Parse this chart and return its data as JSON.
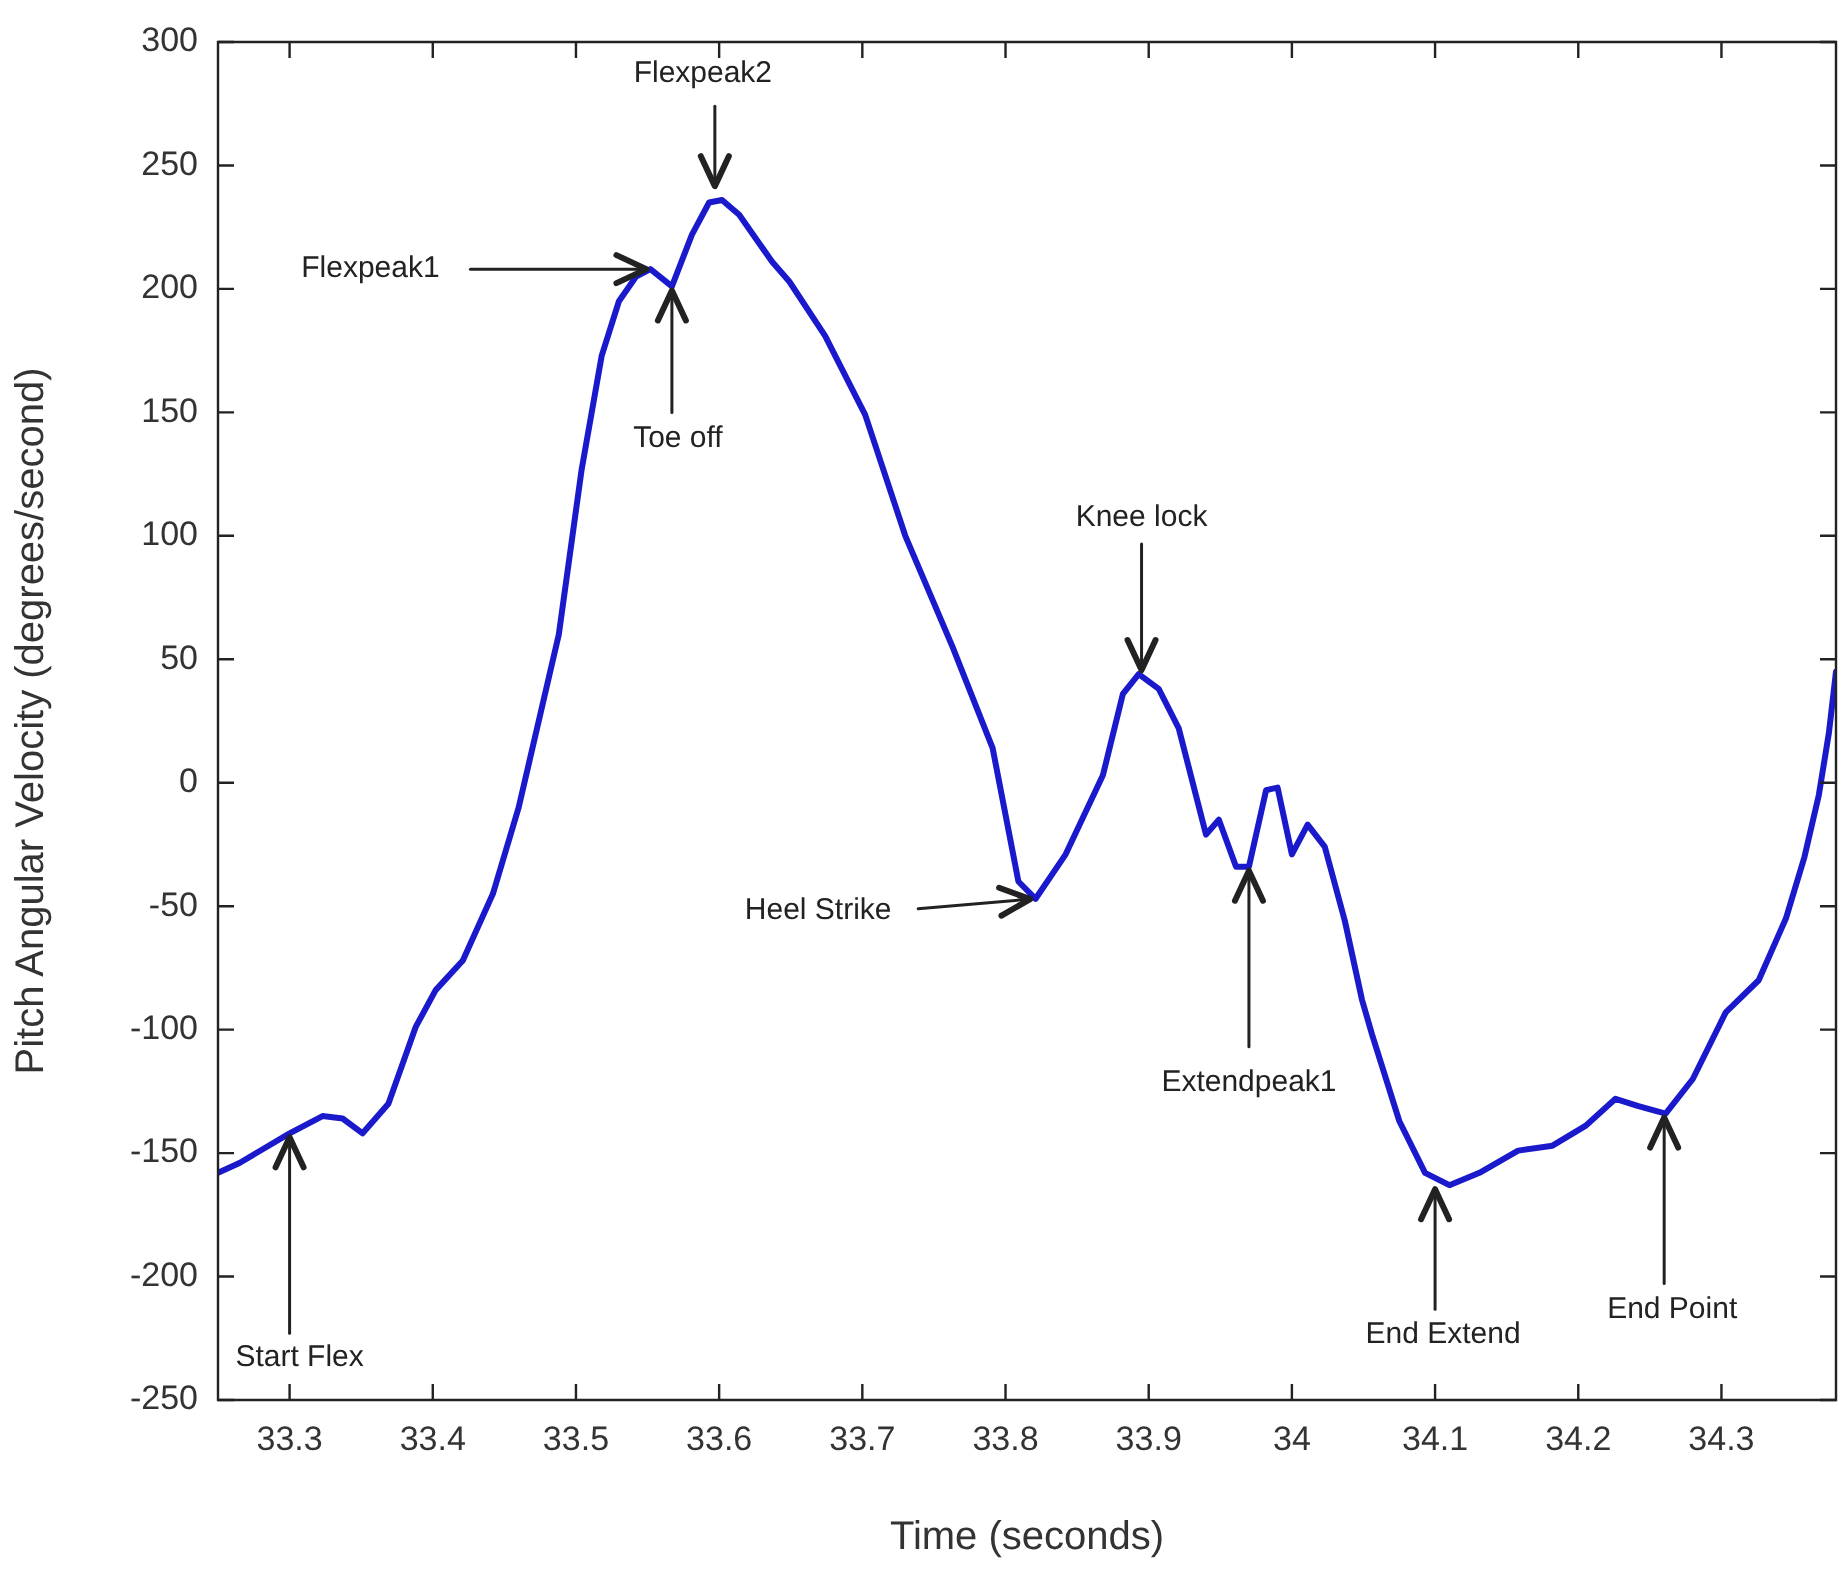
{
  "chart_data": {
    "type": "line",
    "xlabel": "Time (seconds)",
    "ylabel": "Pitch Angular Velocity (degrees/second)",
    "xlim": [
      33.25,
      34.38
    ],
    "ylim": [
      -250,
      300
    ],
    "xticks": [
      33.3,
      33.4,
      33.5,
      33.6,
      33.7,
      33.8,
      33.9,
      34,
      34.1,
      34.2,
      34.3
    ],
    "yticks": [
      -250,
      -200,
      -150,
      -100,
      -50,
      0,
      50,
      100,
      150,
      200,
      250,
      300
    ],
    "grid": false,
    "legend": false,
    "marker": "none",
    "line_style": "solid",
    "series": [
      {
        "color": "#1a1acc",
        "x": [
          33.25,
          33.265,
          33.3,
          33.323,
          33.337,
          33.351,
          33.369,
          33.388,
          33.402,
          33.421,
          33.442,
          33.46,
          33.488,
          33.504,
          33.518,
          33.53,
          33.542,
          33.552,
          33.567,
          33.581,
          33.593,
          33.602,
          33.614,
          33.637,
          33.649,
          33.674,
          33.702,
          33.73,
          33.763,
          33.791,
          33.809,
          33.821,
          33.842,
          33.868,
          33.882,
          33.893,
          33.907,
          33.921,
          33.94,
          33.949,
          33.961,
          33.97,
          33.982,
          33.99,
          34.0,
          34.011,
          34.023,
          34.037,
          34.049,
          34.056,
          34.075,
          34.093,
          34.11,
          34.131,
          34.158,
          34.182,
          34.205,
          34.226,
          34.242,
          34.261,
          34.28,
          34.303,
          34.326,
          34.345,
          34.358,
          34.368,
          34.375,
          34.38
        ],
        "values": [
          -158,
          -154,
          -142,
          -135,
          -136,
          -142,
          -130,
          -99,
          -84,
          -72,
          -45,
          -10,
          60,
          127,
          173,
          195,
          205,
          208,
          201,
          222,
          235,
          236,
          230,
          211,
          203,
          181,
          149,
          100,
          55,
          14,
          -40,
          -47,
          -29,
          3,
          36,
          44,
          38,
          22,
          -21,
          -15,
          -34,
          -34,
          -3,
          -2,
          -29,
          -17,
          -26,
          -56,
          -88,
          -102,
          -137,
          -158,
          -163,
          -158,
          -149,
          -147,
          -139,
          -128,
          -131,
          -134,
          -120,
          -93,
          -80,
          -55,
          -30,
          -5,
          20,
          45
        ]
      }
    ],
    "annotations": [
      {
        "text": "Flexpeak1",
        "x": 33.552,
        "y": 208
      },
      {
        "text": "Flexpeak2",
        "x": 33.597,
        "y": 240
      },
      {
        "text": "Toe off",
        "x": 33.567,
        "y": 201
      },
      {
        "text": "Start Flex",
        "x": 33.3,
        "y": -142
      },
      {
        "text": "Heel Strike",
        "x": 33.82,
        "y": -47
      },
      {
        "text": "Knee lock",
        "x": 33.895,
        "y": 44
      },
      {
        "text": "Extendpeak1",
        "x": 33.97,
        "y": -34
      },
      {
        "text": "End Extend",
        "x": 34.1,
        "y": -163
      },
      {
        "text": "End Point",
        "x": 34.26,
        "y": -134
      }
    ]
  }
}
